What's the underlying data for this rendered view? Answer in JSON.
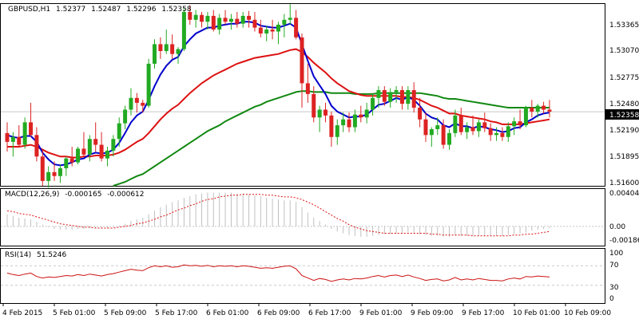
{
  "symbol_header": {
    "symbol": "GBPUSD,H1",
    "open": "1.52377",
    "high": "1.52487",
    "low": "1.52296",
    "close": "1.52358"
  },
  "macd_header": {
    "label": "MACD(12,26,9)",
    "main": "-0.000165",
    "signal": "-0.000612"
  },
  "rsi_header": {
    "label": "RSI(14)",
    "value": "51.5246"
  },
  "price_axis": [
    "1.53365",
    "1.53070",
    "1.52775",
    "1.52480",
    "1.52190",
    "1.51895",
    "1.51600"
  ],
  "macd_axis": [
    "0.00404",
    "0.00",
    "-0.00186"
  ],
  "rsi_axis": [
    "100",
    "70",
    "30",
    "0"
  ],
  "current_price_tag": "1.52358",
  "time_axis": [
    "4 Feb 2015",
    "5 Feb 01:00",
    "5 Feb 09:00",
    "5 Feb 17:00",
    "6 Feb 01:00",
    "6 Feb 09:00",
    "6 Feb 17:00",
    "9 Feb 01:00",
    "9 Feb 09:00",
    "9 Feb 17:00",
    "10 Feb 01:00",
    "10 Feb 09:00"
  ],
  "colors": {
    "bull": "#22aa22",
    "bear": "#dd2222",
    "ma_fast": "#0000cc",
    "ma_mid": "#dd1111",
    "ma_slow": "#118811",
    "grid": "#c8c8c8",
    "axis": "#000000",
    "macd_hist": "#c0c0c0",
    "macd_signal": "#dd1111",
    "rsi_line": "#cc1111"
  },
  "chart_data": {
    "type": "line",
    "title": "GBPUSD,H1",
    "price_range": [
      1.516,
      1.5347
    ],
    "rsi_levels": [
      70,
      30
    ],
    "candles": [
      [
        1.5214,
        1.5225,
        1.5195,
        1.5205
      ],
      [
        1.5205,
        1.5215,
        1.519,
        1.521
      ],
      [
        1.521,
        1.5222,
        1.52,
        1.5202
      ],
      [
        1.5202,
        1.523,
        1.5198,
        1.5225
      ],
      [
        1.5225,
        1.5245,
        1.521,
        1.5212
      ],
      [
        1.5212,
        1.522,
        1.5185,
        1.519
      ],
      [
        1.519,
        1.5198,
        1.516,
        1.5165
      ],
      [
        1.5165,
        1.518,
        1.5158,
        1.5174
      ],
      [
        1.5174,
        1.5185,
        1.5165,
        1.517
      ],
      [
        1.517,
        1.5182,
        1.5163,
        1.5178
      ],
      [
        1.5178,
        1.519,
        1.517,
        1.5188
      ],
      [
        1.5188,
        1.52,
        1.518,
        1.5184
      ],
      [
        1.5184,
        1.52,
        1.5182,
        1.5198
      ],
      [
        1.5198,
        1.5215,
        1.519,
        1.5192
      ],
      [
        1.5192,
        1.5212,
        1.5185,
        1.5208
      ],
      [
        1.5208,
        1.5225,
        1.5195,
        1.5202
      ],
      [
        1.5202,
        1.5215,
        1.5185,
        1.5188
      ],
      [
        1.5188,
        1.52,
        1.518,
        1.5196
      ],
      [
        1.5196,
        1.5212,
        1.519,
        1.5208
      ],
      [
        1.5208,
        1.523,
        1.52,
        1.5224
      ],
      [
        1.5224,
        1.5242,
        1.5218,
        1.5238
      ],
      [
        1.5238,
        1.526,
        1.5232,
        1.525
      ],
      [
        1.525,
        1.5255,
        1.5235,
        1.5245
      ],
      [
        1.5245,
        1.5248,
        1.5235,
        1.5242
      ],
      [
        1.5242,
        1.529,
        1.524,
        1.5285
      ],
      [
        1.5285,
        1.531,
        1.528,
        1.5305
      ],
      [
        1.5305,
        1.5312,
        1.529,
        1.5298
      ],
      [
        1.5298,
        1.532,
        1.5295,
        1.5305
      ],
      [
        1.5305,
        1.5315,
        1.529,
        1.5295
      ],
      [
        1.5295,
        1.5302,
        1.5285,
        1.53
      ],
      [
        1.53,
        1.5342,
        1.5298,
        1.5338
      ],
      [
        1.5338,
        1.5345,
        1.5325,
        1.533
      ],
      [
        1.533,
        1.534,
        1.5322,
        1.5335
      ],
      [
        1.5335,
        1.5338,
        1.5322,
        1.5328
      ],
      [
        1.5328,
        1.5338,
        1.532,
        1.5334
      ],
      [
        1.5334,
        1.534,
        1.5318,
        1.532
      ],
      [
        1.532,
        1.5336,
        1.5315,
        1.5332
      ],
      [
        1.5332,
        1.534,
        1.5325,
        1.5328
      ],
      [
        1.5328,
        1.5336,
        1.532,
        1.5331
      ],
      [
        1.5331,
        1.5338,
        1.5322,
        1.5326
      ],
      [
        1.5326,
        1.5338,
        1.5322,
        1.5334
      ],
      [
        1.5334,
        1.5339,
        1.5322,
        1.533
      ],
      [
        1.533,
        1.5338,
        1.5318,
        1.5322
      ],
      [
        1.5322,
        1.533,
        1.5312,
        1.5316
      ],
      [
        1.5316,
        1.5324,
        1.5308,
        1.532
      ],
      [
        1.532,
        1.533,
        1.531,
        1.5318
      ],
      [
        1.5318,
        1.5328,
        1.5305,
        1.5325
      ],
      [
        1.5325,
        1.5336,
        1.5312,
        1.533
      ],
      [
        1.533,
        1.5346,
        1.5325,
        1.5332
      ],
      [
        1.5332,
        1.534,
        1.531,
        1.5312
      ],
      [
        1.5312,
        1.5316,
        1.524,
        1.5265
      ],
      [
        1.5265,
        1.5285,
        1.5245,
        1.5254
      ],
      [
        1.5254,
        1.5262,
        1.5225,
        1.523
      ],
      [
        1.523,
        1.5242,
        1.5215,
        1.5238
      ],
      [
        1.5238,
        1.5245,
        1.5225,
        1.5232
      ],
      [
        1.5232,
        1.5236,
        1.52,
        1.521
      ],
      [
        1.521,
        1.5228,
        1.5202,
        1.5222
      ],
      [
        1.5222,
        1.5235,
        1.5215,
        1.5228
      ],
      [
        1.5228,
        1.5235,
        1.5215,
        1.522
      ],
      [
        1.522,
        1.5238,
        1.5215,
        1.5233
      ],
      [
        1.5233,
        1.5242,
        1.5225,
        1.523
      ],
      [
        1.523,
        1.5245,
        1.5224,
        1.5238
      ],
      [
        1.5238,
        1.5255,
        1.5232,
        1.525
      ],
      [
        1.525,
        1.5262,
        1.524,
        1.5258
      ],
      [
        1.5258,
        1.5262,
        1.5242,
        1.5246
      ],
      [
        1.5246,
        1.526,
        1.524,
        1.5256
      ],
      [
        1.5256,
        1.5262,
        1.5245,
        1.5258
      ],
      [
        1.5258,
        1.5262,
        1.5238,
        1.5244
      ],
      [
        1.5244,
        1.5262,
        1.5238,
        1.5258
      ],
      [
        1.5258,
        1.5266,
        1.5235,
        1.524
      ],
      [
        1.524,
        1.525,
        1.522,
        1.5228
      ],
      [
        1.5228,
        1.5235,
        1.5205,
        1.5212
      ],
      [
        1.5212,
        1.522,
        1.52,
        1.5218
      ],
      [
        1.5218,
        1.523,
        1.5212,
        1.5222
      ],
      [
        1.5222,
        1.5228,
        1.5198,
        1.5202
      ],
      [
        1.5202,
        1.5218,
        1.5197,
        1.5214
      ],
      [
        1.5214,
        1.5238,
        1.521,
        1.5232
      ],
      [
        1.5232,
        1.524,
        1.5212,
        1.5215
      ],
      [
        1.5215,
        1.5225,
        1.5208,
        1.522
      ],
      [
        1.522,
        1.5232,
        1.5212,
        1.5216
      ],
      [
        1.5216,
        1.5228,
        1.521,
        1.5225
      ],
      [
        1.5225,
        1.5235,
        1.5215,
        1.5219
      ],
      [
        1.5219,
        1.5224,
        1.5206,
        1.5212
      ],
      [
        1.5212,
        1.522,
        1.5206,
        1.5214
      ],
      [
        1.5214,
        1.522,
        1.5206,
        1.521
      ],
      [
        1.521,
        1.5225,
        1.5205,
        1.5221
      ],
      [
        1.5221,
        1.523,
        1.5212,
        1.5226
      ],
      [
        1.5226,
        1.5238,
        1.5218,
        1.5222
      ],
      [
        1.5222,
        1.5242,
        1.522,
        1.524
      ],
      [
        1.524,
        1.5248,
        1.523,
        1.5236
      ],
      [
        1.5236,
        1.5244,
        1.523,
        1.5242
      ],
      [
        1.5242,
        1.5246,
        1.5234,
        1.5238
      ],
      [
        1.5238,
        1.5248,
        1.523,
        1.5236
      ]
    ],
    "ma_fast": [
      1.5212,
      1.521,
      1.5209,
      1.5211,
      1.5211,
      1.5205,
      1.5194,
      1.5187,
      1.5182,
      1.5181,
      1.5182,
      1.5184,
      1.5187,
      1.5188,
      1.5192,
      1.5194,
      1.5193,
      1.5194,
      1.5197,
      1.5204,
      1.5214,
      1.5225,
      1.5232,
      1.5236,
      1.5248,
      1.5262,
      1.5274,
      1.5283,
      1.5289,
      1.5292,
      1.5303,
      1.531,
      1.5316,
      1.5319,
      1.5322,
      1.5322,
      1.5324,
      1.5325,
      1.5326,
      1.5326,
      1.5328,
      1.5328,
      1.5327,
      1.5324,
      1.5323,
      1.5322,
      1.5322,
      1.5324,
      1.5326,
      1.5322,
      1.5305,
      1.5288,
      1.5272,
      1.5263,
      1.5254,
      1.5242,
      1.5236,
      1.5233,
      1.523,
      1.5231,
      1.5231,
      1.5233,
      1.5238,
      1.5243,
      1.5244,
      1.5247,
      1.525,
      1.5248,
      1.5251,
      1.5248,
      1.5242,
      1.5234,
      1.523,
      1.5228,
      1.5222,
      1.522,
      1.5224,
      1.5221,
      1.5221,
      1.5219,
      1.5221,
      1.522,
      1.5218,
      1.5217,
      1.5215,
      1.5216,
      1.5219,
      1.522,
      1.5225,
      1.5228,
      1.5232,
      1.5234,
      1.5235
    ],
    "ma_mid": [
      1.52,
      1.52,
      1.52,
      1.5201,
      1.5202,
      1.52,
      1.5197,
      1.5194,
      1.5192,
      1.519,
      1.519,
      1.5189,
      1.5189,
      1.519,
      1.519,
      1.5191,
      1.5191,
      1.5191,
      1.5192,
      1.5194,
      1.5197,
      1.5201,
      1.5205,
      1.5208,
      1.5214,
      1.5221,
      1.5228,
      1.5234,
      1.5239,
      1.5243,
      1.5249,
      1.5255,
      1.526,
      1.5265,
      1.5269,
      1.5273,
      1.5276,
      1.5279,
      1.5282,
      1.5285,
      1.5287,
      1.5289,
      1.5291,
      1.5292,
      1.5293,
      1.5294,
      1.5295,
      1.5297,
      1.5299,
      1.53,
      1.5297,
      1.5292,
      1.5286,
      1.5281,
      1.5276,
      1.527,
      1.5265,
      1.5261,
      1.5257,
      1.5255,
      1.5253,
      1.5252,
      1.5252,
      1.5252,
      1.5252,
      1.5252,
      1.5252,
      1.5251,
      1.5251,
      1.525,
      1.5248,
      1.5245,
      1.5242,
      1.524,
      1.5237,
      1.5234,
      1.5234,
      1.5232,
      1.5231,
      1.523,
      1.5229,
      1.5228,
      1.5226,
      1.5225,
      1.5223,
      1.5223,
      1.5223,
      1.5223,
      1.5224,
      1.5225,
      1.5226,
      1.5227,
      1.5228
    ],
    "ma_slow": [
      null,
      null,
      null,
      null,
      null,
      null,
      null,
      null,
      null,
      null,
      null,
      null,
      null,
      null,
      null,
      null,
      null,
      null,
      1.516,
      1.5162,
      1.5164,
      1.5167,
      1.517,
      1.5172,
      1.5176,
      1.518,
      1.5184,
      1.5188,
      1.5192,
      1.5196,
      1.52,
      1.5204,
      1.5208,
      1.5212,
      1.5216,
      1.5219,
      1.5222,
      1.5226,
      1.5229,
      1.5232,
      1.5235,
      1.5238,
      1.5241,
      1.5243,
      1.5246,
      1.5248,
      1.525,
      1.5252,
      1.5254,
      1.5256,
      1.5257,
      1.5257,
      1.5256,
      1.5256,
      1.5256,
      1.5255,
      1.5255,
      1.5255,
      1.5255,
      1.5254,
      1.5254,
      1.5254,
      1.5254,
      1.5255,
      1.5255,
      1.5255,
      1.5255,
      1.5255,
      1.5255,
      1.5255,
      1.5255,
      1.5254,
      1.5253,
      1.5252,
      1.525,
      1.5249,
      1.5249,
      1.5248,
      1.5247,
      1.5246,
      1.5245,
      1.5244,
      1.5243,
      1.5242,
      1.5241,
      1.524,
      1.524,
      1.524,
      1.524,
      1.524,
      1.524,
      1.524,
      1.524
    ],
    "macd_hist": [
      0.0014,
      0.0012,
      0.001,
      0.0009,
      0.0008,
      0.0005,
      0.0002,
      -0.0001,
      -0.0003,
      -0.0004,
      -0.0004,
      -0.0004,
      -0.0003,
      -0.0003,
      -0.0002,
      -0.0002,
      -0.0002,
      -0.0002,
      -0.0001,
      0.0001,
      0.0003,
      0.0006,
      0.0008,
      0.001,
      0.0014,
      0.0018,
      0.0022,
      0.0025,
      0.0028,
      0.003,
      0.0033,
      0.0035,
      0.0037,
      0.0038,
      0.0039,
      0.0039,
      0.0039,
      0.0039,
      0.0039,
      0.0038,
      0.0038,
      0.0037,
      0.0036,
      0.0035,
      0.0033,
      0.0032,
      0.0031,
      0.003,
      0.003,
      0.0028,
      0.0022,
      0.0016,
      0.001,
      0.0006,
      0.0002,
      -0.0003,
      -0.0006,
      -0.0008,
      -0.001,
      -0.0011,
      -0.0012,
      -0.0012,
      -0.0011,
      -0.001,
      -0.0009,
      -0.0009,
      -0.0008,
      -0.0008,
      -0.0007,
      -0.0008,
      -0.0009,
      -0.001,
      -0.0011,
      -0.0011,
      -0.0012,
      -0.0012,
      -0.0011,
      -0.0011,
      -0.0011,
      -0.0011,
      -0.0011,
      -0.0011,
      -0.0011,
      -0.0011,
      -0.0011,
      -0.001,
      -0.0009,
      -0.0008,
      -0.0007,
      -0.0005,
      -0.0004,
      -0.0003,
      -0.0002
    ],
    "macd_signal": [
      0.0018,
      0.0017,
      0.0015,
      0.0014,
      0.0013,
      0.0011,
      0.0009,
      0.0007,
      0.0005,
      0.0003,
      0.0002,
      0.0001,
      0.0,
      -0.0001,
      -0.0001,
      -0.0002,
      -0.0002,
      -0.0002,
      -0.0002,
      -0.0001,
      0.0,
      0.0001,
      0.0003,
      0.0004,
      0.0006,
      0.0008,
      0.0011,
      0.0013,
      0.0016,
      0.0019,
      0.0021,
      0.0024,
      0.0026,
      0.0029,
      0.0031,
      0.0032,
      0.0034,
      0.0035,
      0.0036,
      0.0036,
      0.0037,
      0.0037,
      0.0037,
      0.0037,
      0.0036,
      0.0036,
      0.0035,
      0.0034,
      0.0034,
      0.0033,
      0.0031,
      0.0028,
      0.0025,
      0.0021,
      0.0017,
      0.0013,
      0.0009,
      0.0006,
      0.0002,
      -0.0001,
      -0.0003,
      -0.0005,
      -0.0006,
      -0.0007,
      -0.0008,
      -0.0008,
      -0.0008,
      -0.0008,
      -0.0008,
      -0.0008,
      -0.0008,
      -0.0008,
      -0.0009,
      -0.0009,
      -0.001,
      -0.001,
      -0.001,
      -0.001,
      -0.001,
      -0.0011,
      -0.0011,
      -0.0011,
      -0.0011,
      -0.0011,
      -0.0011,
      -0.0011,
      -0.001,
      -0.001,
      -0.0009,
      -0.0009,
      -0.0008,
      -0.0007,
      -0.0006
    ],
    "rsi": [
      55,
      52,
      50,
      53,
      55,
      48,
      45,
      47,
      46,
      48,
      50,
      49,
      52,
      50,
      53,
      51,
      49,
      52,
      54,
      57,
      60,
      63,
      61,
      60,
      66,
      70,
      68,
      70,
      67,
      68,
      72,
      70,
      71,
      69,
      71,
      68,
      70,
      69,
      70,
      68,
      70,
      69,
      67,
      65,
      66,
      65,
      67,
      69,
      70,
      64,
      50,
      45,
      40,
      44,
      42,
      38,
      41,
      43,
      41,
      44,
      43,
      45,
      48,
      50,
      47,
      50,
      51,
      48,
      51,
      47,
      44,
      40,
      42,
      43,
      39,
      41,
      46,
      41,
      43,
      41,
      44,
      42,
      40,
      40,
      39,
      43,
      45,
      43,
      48,
      47,
      49,
      48,
      47
    ]
  }
}
